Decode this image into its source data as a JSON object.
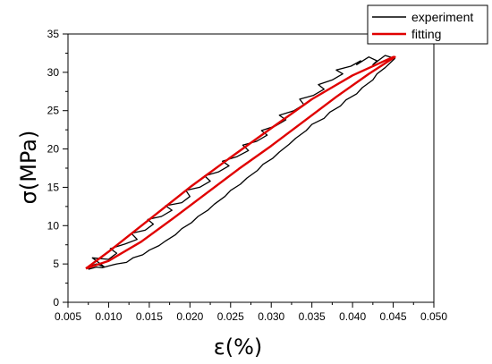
{
  "chart_data": {
    "type": "line",
    "xlabel": "ε(%)",
    "ylabel": "σ(MPa)",
    "xlim": [
      0.005,
      0.05
    ],
    "ylim": [
      0,
      35
    ],
    "x_ticks": [
      "0.005",
      "0.010",
      "0.015",
      "0.020",
      "0.025",
      "0.030",
      "0.035",
      "0.040",
      "0.045",
      "0.050"
    ],
    "y_ticks": [
      "0",
      "5",
      "10",
      "15",
      "20",
      "25",
      "30",
      "35"
    ],
    "grid": false,
    "legend_position": "top-right",
    "series": [
      {
        "name": "experiment",
        "color": "#000000",
        "x": [
          0.0072,
          0.0085,
          0.0095,
          0.008,
          0.01,
          0.011,
          0.0102,
          0.012,
          0.0135,
          0.0128,
          0.0145,
          0.0155,
          0.0148,
          0.0165,
          0.0178,
          0.017,
          0.019,
          0.02,
          0.0195,
          0.0212,
          0.0225,
          0.0218,
          0.0235,
          0.0248,
          0.024,
          0.0258,
          0.0272,
          0.0265,
          0.0282,
          0.0295,
          0.0288,
          0.0305,
          0.0318,
          0.031,
          0.0328,
          0.034,
          0.0335,
          0.0352,
          0.0365,
          0.0358,
          0.0375,
          0.0388,
          0.038,
          0.0398,
          0.041,
          0.0405,
          0.042,
          0.043,
          0.0425,
          0.044,
          0.0452,
          0.044,
          0.043,
          0.0425,
          0.0412,
          0.0405,
          0.0392,
          0.0385,
          0.0372,
          0.0365,
          0.035,
          0.0343,
          0.033,
          0.0322,
          0.031,
          0.0302,
          0.029,
          0.0283,
          0.027,
          0.0262,
          0.025,
          0.0243,
          0.023,
          0.0222,
          0.021,
          0.0202,
          0.019,
          0.0182,
          0.017,
          0.0162,
          0.015,
          0.0142,
          0.013,
          0.0122,
          0.011,
          0.0102,
          0.0092,
          0.0085,
          0.0075
        ],
        "y": [
          4.5,
          5.0,
          4.6,
          5.8,
          5.6,
          6.4,
          7.0,
          7.6,
          8.2,
          9.0,
          9.4,
          10.2,
          10.8,
          11.2,
          12.0,
          12.6,
          13.0,
          13.8,
          14.6,
          15.0,
          15.8,
          16.5,
          17.0,
          17.8,
          18.4,
          19.0,
          19.8,
          20.5,
          21.0,
          21.8,
          22.4,
          23.0,
          23.8,
          24.4,
          25.0,
          25.8,
          26.5,
          27.0,
          27.8,
          28.4,
          29.0,
          29.8,
          30.3,
          30.8,
          31.5,
          31.0,
          32.0,
          31.5,
          31.0,
          32.2,
          31.8,
          30.6,
          29.8,
          29.0,
          28.0,
          27.2,
          26.4,
          25.6,
          24.8,
          24.0,
          23.2,
          22.4,
          21.4,
          20.6,
          19.6,
          18.8,
          18.0,
          17.2,
          16.2,
          15.4,
          14.6,
          13.8,
          12.8,
          12.0,
          11.2,
          10.4,
          9.6,
          8.8,
          8.0,
          7.4,
          6.8,
          6.2,
          5.8,
          5.2,
          5.0,
          4.8,
          4.5,
          4.6,
          4.3
        ]
      },
      {
        "name": "fitting",
        "color": "#e00000",
        "x": [
          0.0072,
          0.01,
          0.015,
          0.02,
          0.025,
          0.03,
          0.035,
          0.04,
          0.045,
          0.0452,
          0.042,
          0.038,
          0.034,
          0.03,
          0.026,
          0.022,
          0.018,
          0.014,
          0.01,
          0.0072
        ],
        "y": [
          4.4,
          6.6,
          10.8,
          15.0,
          18.9,
          22.7,
          26.5,
          29.6,
          32.0,
          32.0,
          29.8,
          26.8,
          23.6,
          20.4,
          17.4,
          14.2,
          11.0,
          7.9,
          5.4,
          4.4
        ]
      }
    ]
  }
}
